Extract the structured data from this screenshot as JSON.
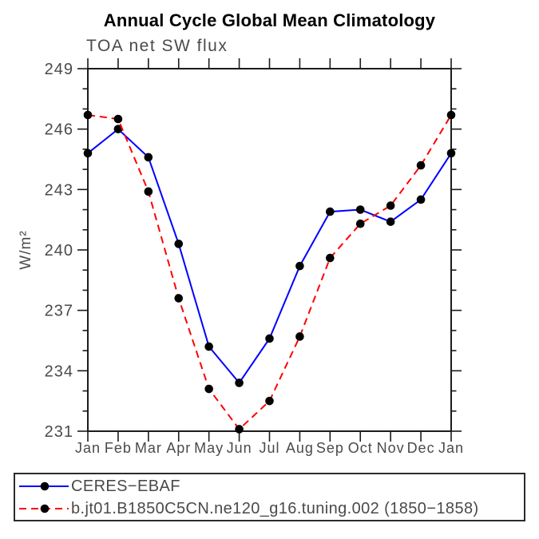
{
  "title": "Annual Cycle Global Mean Climatology",
  "subtitle": "TOA net SW flux",
  "chart_data": {
    "type": "line",
    "title": "Annual Cycle Global Mean Climatology",
    "subtitle": "TOA net SW flux",
    "xlabel": "",
    "ylabel": "W/m²",
    "categories": [
      "Jan",
      "Feb",
      "Mar",
      "Apr",
      "May",
      "Jun",
      "Jul",
      "Aug",
      "Sep",
      "Oct",
      "Nov",
      "Dec",
      "Jan"
    ],
    "ylim": [
      231,
      249
    ],
    "ytick_major": 3,
    "ytick_minor": 1,
    "ytick_labels": [
      "231",
      "234",
      "237",
      "240",
      "243",
      "246",
      "249"
    ],
    "grid": false,
    "legend_position": "bottom-boxed",
    "series": [
      {
        "name": "CERES−EBAF",
        "color": "#0000ff",
        "line_style": "solid",
        "marker": "filled-circle",
        "marker_color": "#000000",
        "values": [
          244.8,
          246.0,
          244.6,
          240.3,
          235.2,
          233.4,
          235.6,
          239.2,
          241.9,
          242.0,
          241.4,
          242.5,
          244.8
        ]
      },
      {
        "name": "b.jt01.B1850C5CN.ne120_g16.tuning.002 (1850−1858)",
        "color": "#ff0000",
        "line_style": "dashed",
        "marker": "filled-circle",
        "marker_color": "#000000",
        "values": [
          246.7,
          246.5,
          242.9,
          237.6,
          233.1,
          231.1,
          232.5,
          235.7,
          239.6,
          241.3,
          242.2,
          244.2,
          246.7
        ]
      }
    ]
  },
  "colors": {
    "axis": "#1b1b1b",
    "labels": "#4a4a4a",
    "title": "#000000",
    "series_blue": "#0000ff",
    "series_red": "#ff0000",
    "marker": "#000000",
    "background": "#ffffff"
  }
}
